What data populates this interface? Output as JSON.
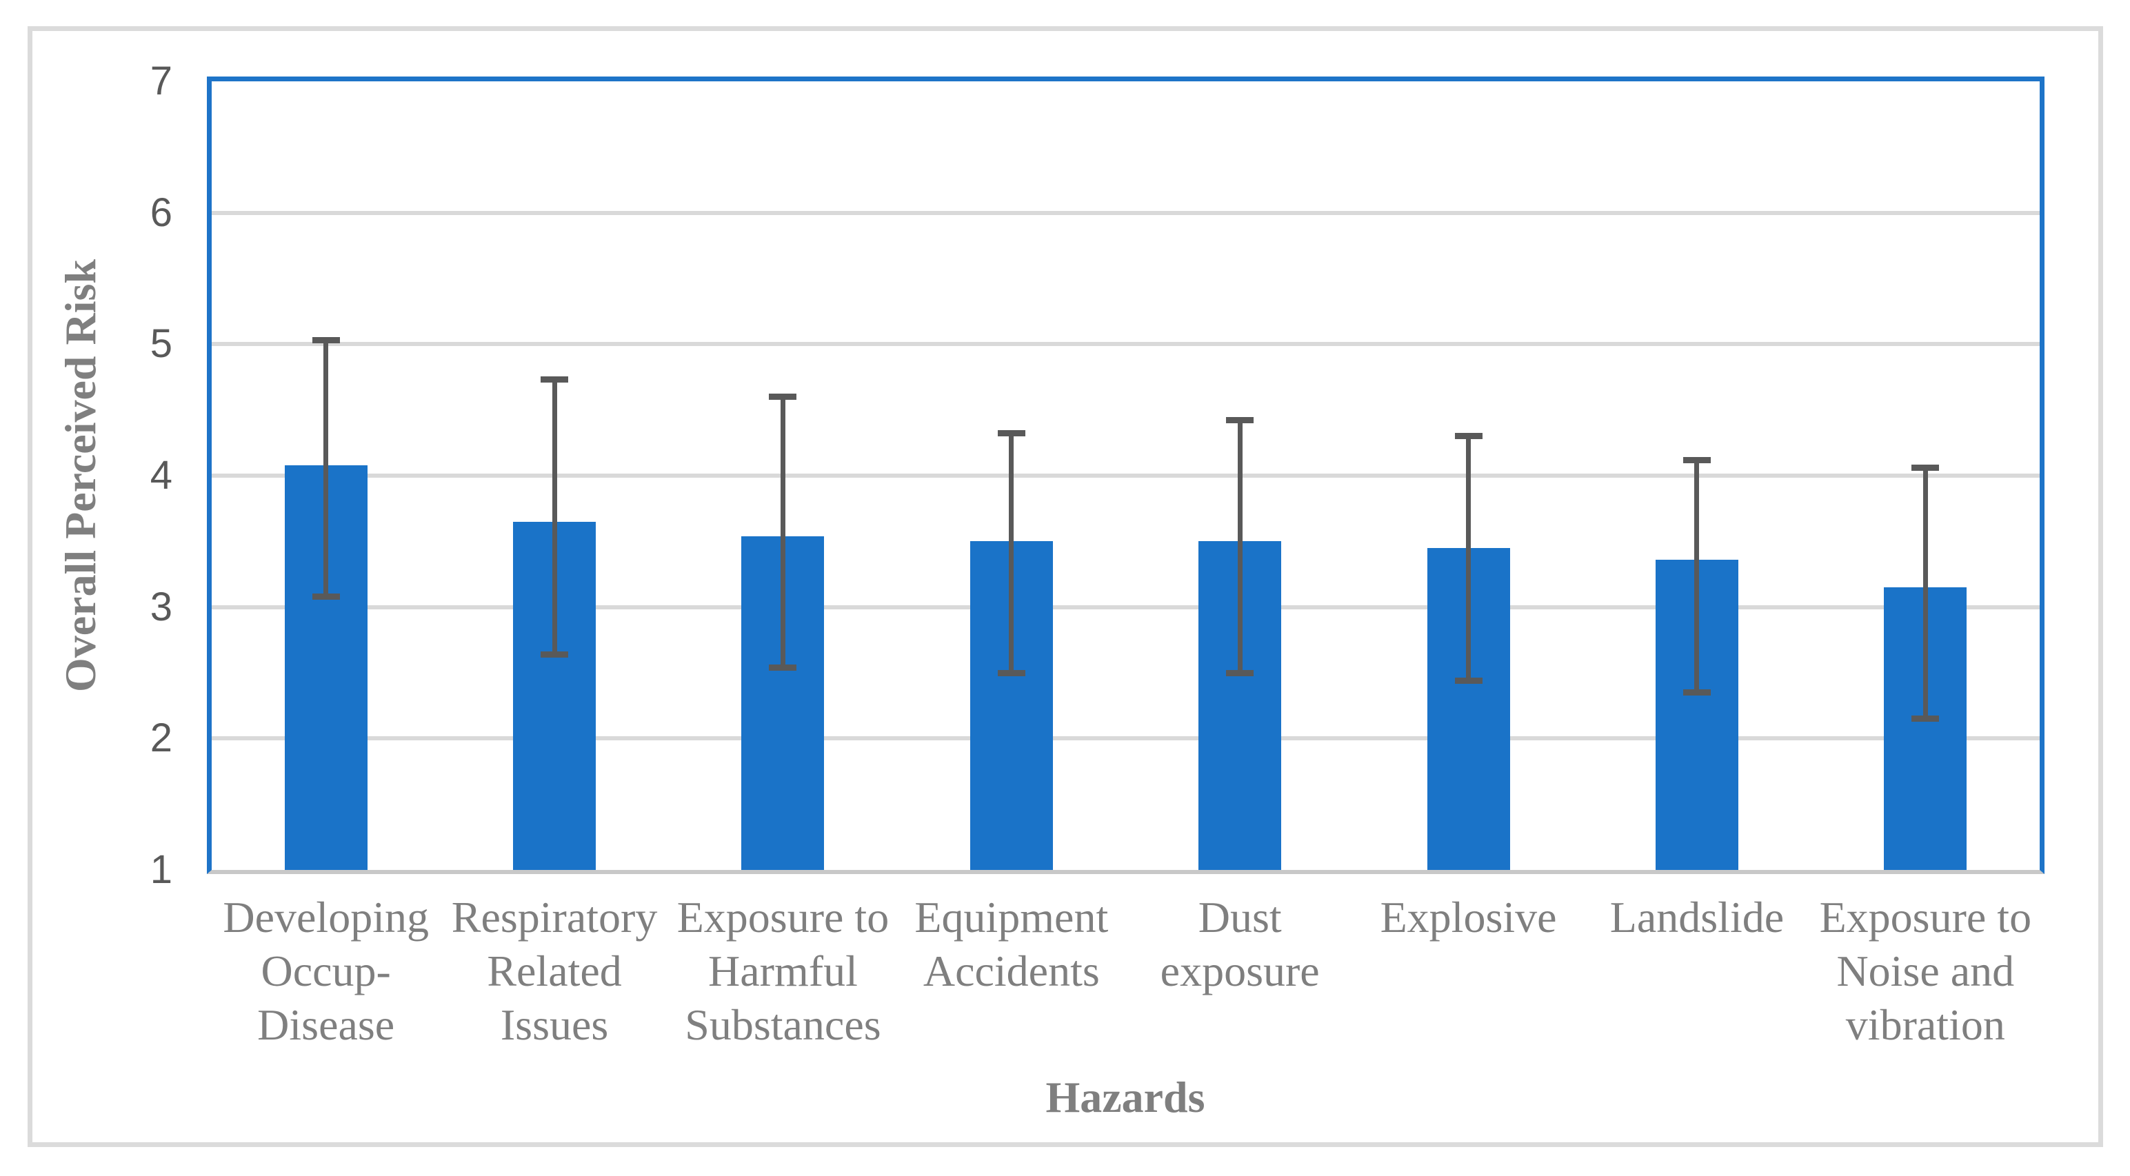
{
  "chart_data": {
    "type": "bar",
    "title": "",
    "xlabel": "Hazards",
    "ylabel": "Overall Perceived Risk",
    "ylim": [
      1,
      7
    ],
    "yticks": [
      1,
      2,
      3,
      4,
      5,
      6,
      7
    ],
    "grid": true,
    "legend": false,
    "categories": [
      "Developing Occup-Disease",
      "Respiratory Related Issues",
      "Exposure to Harmful Substances",
      "Equipment Accidents",
      "Dust exposure",
      "Explosive",
      "Landslide",
      "Exposure to Noise and vibration"
    ],
    "category_display": [
      "Developing\nOccup-\nDisease",
      "Respiratory\nRelated\nIssues",
      "Exposure to\nHarmful\nSubstances",
      "Equipment\nAccidents",
      "Dust\nexposure",
      "Explosive",
      "Landslide",
      "Exposure to\nNoise and\nvibration"
    ],
    "series": [
      {
        "name": "Overall Perceived Risk",
        "values": [
          4.08,
          3.65,
          3.54,
          3.5,
          3.5,
          3.45,
          3.36,
          3.15
        ],
        "error_upper": [
          5.03,
          4.73,
          4.6,
          4.32,
          4.42,
          4.3,
          4.12,
          4.06
        ],
        "error_lower": [
          3.08,
          2.64,
          2.54,
          2.5,
          2.5,
          2.44,
          2.35,
          2.15
        ]
      }
    ],
    "colors": {
      "bar": "#1A73C8",
      "error_bar": "#595959",
      "gridline": "#D9D9D9",
      "plot_border": "#1E74C8",
      "axis_line": "#C8C8C8",
      "tick_text": "#595959",
      "label_text": "#7F7F7F",
      "frame_border": "#DBDBDB"
    }
  }
}
